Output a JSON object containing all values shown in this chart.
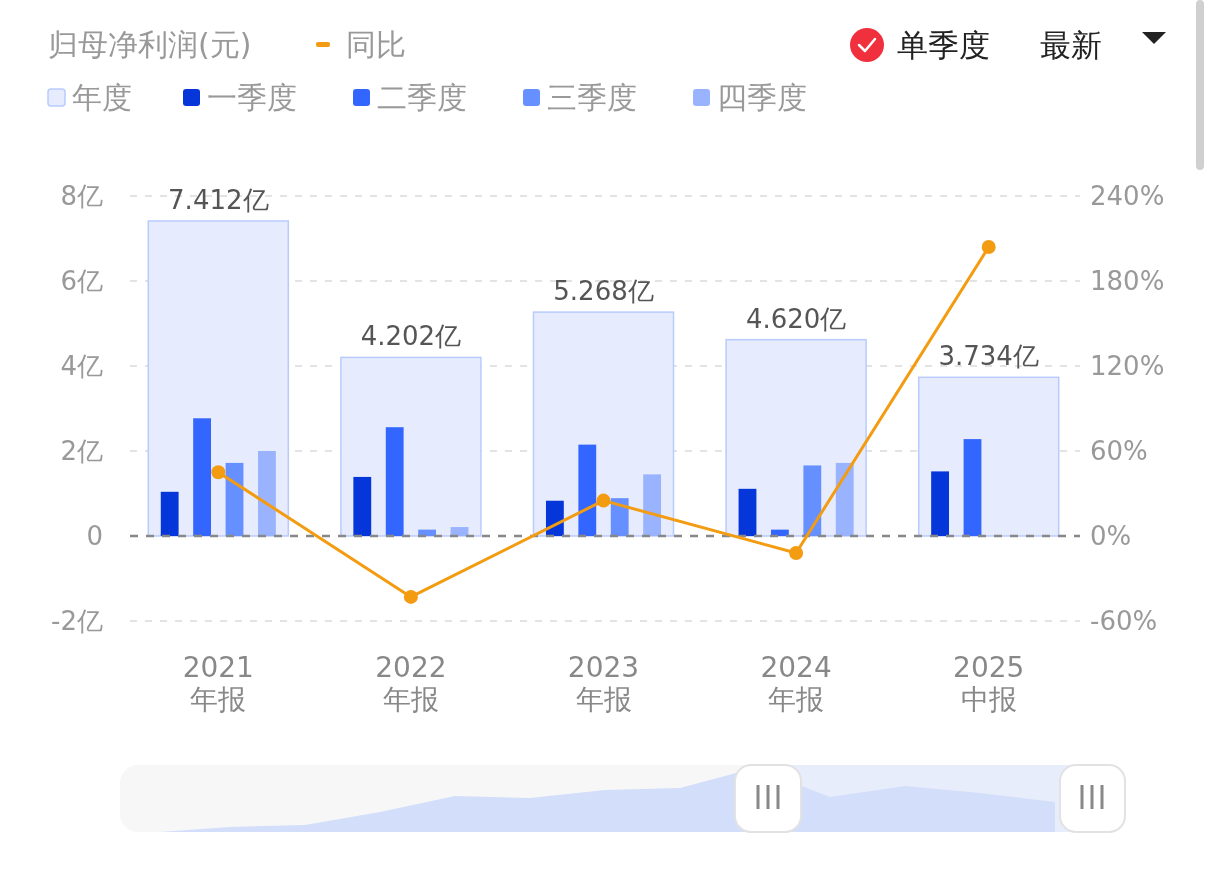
{
  "chart_data": {
    "type": "bar",
    "title": "归母净利润(元)",
    "categories": [
      "2021\n年报",
      "2022\n年报",
      "2023\n年报",
      "2024\n年报",
      "2025\n中报"
    ],
    "series": [
      {
        "name": "年度",
        "type": "bar",
        "color": "#e6ecfd",
        "values": [
          7.412,
          4.202,
          5.268,
          4.62,
          3.734
        ],
        "value_labels": [
          "7.412亿",
          "4.202亿",
          "5.268亿",
          "4.620亿",
          "3.734亿"
        ]
      },
      {
        "name": "一季度",
        "type": "bar",
        "color": "#0436d9",
        "values": [
          1.04,
          1.39,
          0.83,
          1.11,
          1.52
        ]
      },
      {
        "name": "二季度",
        "type": "bar",
        "color": "#3366ff",
        "values": [
          2.77,
          2.56,
          2.15,
          0.15,
          2.28
        ]
      },
      {
        "name": "三季度",
        "type": "bar",
        "color": "#6690ff",
        "values": [
          1.72,
          0.15,
          0.89,
          1.66,
          null
        ]
      },
      {
        "name": "四季度",
        "type": "bar",
        "color": "#99b3ff",
        "values": [
          2.0,
          0.21,
          1.45,
          1.72,
          null
        ]
      },
      {
        "name": "同比",
        "type": "line",
        "axis": "y2",
        "color": "#f39c12",
        "values": [
          45,
          -43,
          25,
          -12,
          204
        ]
      }
    ],
    "ylim": [
      -2,
      8
    ],
    "yticks": [
      {
        "value": -2,
        "label": "-2亿"
      },
      0,
      {
        "value": 2,
        "label": "2亿"
      },
      {
        "value": 4,
        "label": "4亿"
      },
      {
        "value": 6,
        "label": "6亿"
      },
      {
        "value": 8,
        "label": "8亿"
      }
    ],
    "y2lim": [
      -60,
      240
    ],
    "y2ticks": [
      {
        "value": -60,
        "label": "-60%"
      },
      {
        "value": 0,
        "label": "0%"
      },
      {
        "value": 60,
        "label": "60%"
      },
      {
        "value": 120,
        "label": "120%"
      },
      {
        "value": 180,
        "label": "180%"
      },
      {
        "value": 240,
        "label": "240%"
      }
    ],
    "ref_lines": [
      {
        "axis": "y",
        "value": 0,
        "color": "#888888",
        "line_style": "dashed"
      }
    ],
    "grid": "y",
    "legend": "top left",
    "marker": "circle",
    "annotations": [
      "单季度",
      "最新"
    ]
  }
}
